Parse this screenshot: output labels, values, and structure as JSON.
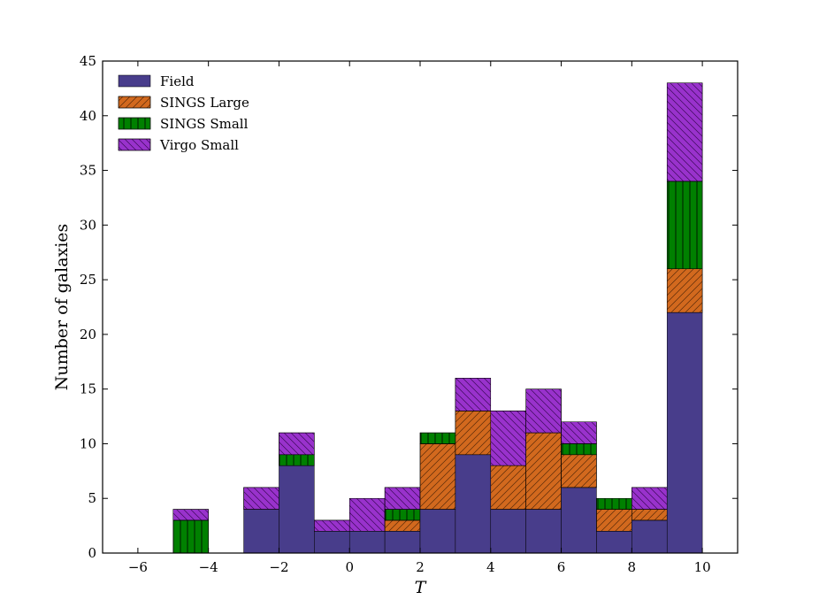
{
  "chart_data": {
    "type": "bar",
    "stacked": true,
    "xlabel": "T",
    "ylabel": "Number of galaxies",
    "xlim": [
      -7,
      11
    ],
    "ylim": [
      0,
      45
    ],
    "x_ticks": [
      -6,
      -4,
      -2,
      0,
      2,
      4,
      6,
      8,
      10
    ],
    "x_tick_labels": [
      "−6",
      "−4",
      "−2",
      "0",
      "2",
      "4",
      "6",
      "8",
      "10"
    ],
    "y_ticks": [
      0,
      5,
      10,
      15,
      20,
      25,
      30,
      35,
      40,
      45
    ],
    "y_tick_labels": [
      "0",
      "5",
      "10",
      "15",
      "20",
      "25",
      "30",
      "35",
      "40",
      "45"
    ],
    "bins": [
      [
        -5,
        -4
      ],
      [
        -4,
        -3
      ],
      [
        -3,
        -2
      ],
      [
        -2,
        -1
      ],
      [
        -1,
        0
      ],
      [
        0,
        1
      ],
      [
        1,
        2
      ],
      [
        2,
        3
      ],
      [
        3,
        4
      ],
      [
        4,
        5
      ],
      [
        5,
        6
      ],
      [
        6,
        7
      ],
      [
        7,
        8
      ],
      [
        8,
        9
      ],
      [
        9,
        10
      ]
    ],
    "legend_position": "top-left",
    "series": [
      {
        "name": "Field",
        "color": "#483d8b",
        "hatch": "none",
        "values": [
          0,
          0,
          4,
          8,
          2,
          2,
          2,
          4,
          9,
          4,
          4,
          6,
          2,
          3,
          22
        ]
      },
      {
        "name": "SINGS Large",
        "color": "#d2691e",
        "hatch": "diagonal",
        "values": [
          0,
          0,
          0,
          0,
          0,
          0,
          1,
          6,
          4,
          4,
          7,
          3,
          2,
          1,
          4
        ]
      },
      {
        "name": "SINGS Small",
        "color": "#008000",
        "hatch": "vertical",
        "values": [
          3,
          0,
          0,
          1,
          0,
          0,
          1,
          1,
          0,
          0,
          0,
          1,
          1,
          0,
          8
        ]
      },
      {
        "name": "Virgo Small",
        "color": "#9932cc",
        "hatch": "backslash",
        "values": [
          1,
          0,
          2,
          2,
          1,
          3,
          2,
          0,
          3,
          5,
          4,
          2,
          0,
          2,
          9
        ]
      }
    ]
  }
}
